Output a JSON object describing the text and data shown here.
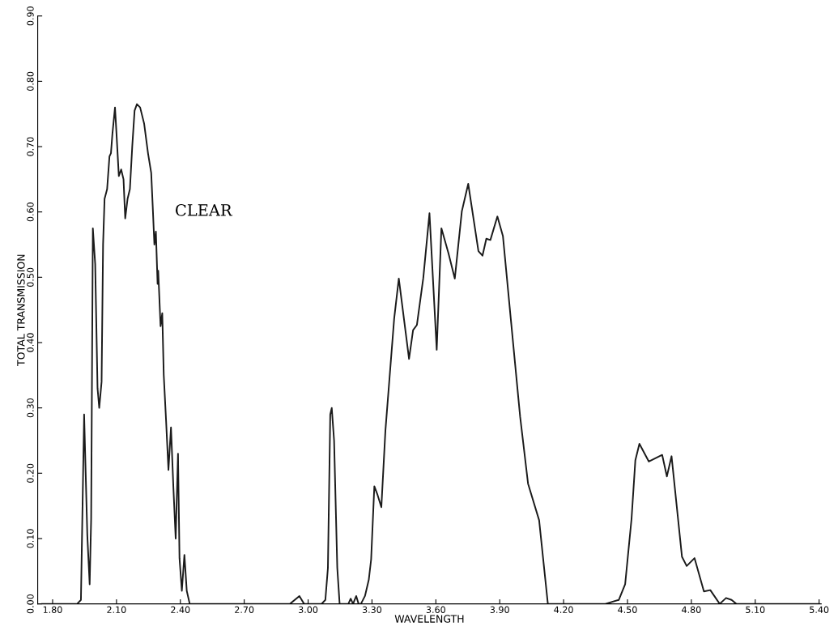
{
  "chart_data": {
    "type": "line",
    "xlabel": "WAVELENGTH",
    "ylabel": "TOTAL TRANSMISSION",
    "annotations": [
      "CLEAR"
    ],
    "xlim": [
      1.73,
      5.41
    ],
    "ylim": [
      0,
      0.9
    ],
    "xticks": [
      {
        "value": 1.8,
        "label": "1.80"
      },
      {
        "value": 2.1,
        "label": "2.10"
      },
      {
        "value": 2.4,
        "label": "2.40"
      },
      {
        "value": 2.7,
        "label": "2.70"
      },
      {
        "value": 3.0,
        "label": "3.00"
      },
      {
        "value": 3.3,
        "label": "3.30"
      },
      {
        "value": 3.6,
        "label": "3.60"
      },
      {
        "value": 3.9,
        "label": "3.90"
      },
      {
        "value": 4.2,
        "label": "4.20"
      },
      {
        "value": 4.5,
        "label": "4.50"
      },
      {
        "value": 4.8,
        "label": "4.80"
      },
      {
        "value": 5.1,
        "label": "5.10"
      },
      {
        "value": 5.4,
        "label": "5.40"
      }
    ],
    "yticks": [
      {
        "value": 0,
        "label": "0.00"
      },
      {
        "value": 0.1,
        "label": "0.10"
      },
      {
        "value": 0.2,
        "label": "0.20"
      },
      {
        "value": 0.3,
        "label": "0.30"
      },
      {
        "value": 0.4,
        "label": "0.40"
      },
      {
        "value": 0.5,
        "label": "0.50"
      },
      {
        "value": 0.6,
        "label": "0.60"
      },
      {
        "value": 0.7,
        "label": "0.70"
      },
      {
        "value": 0.8,
        "label": "0.80"
      },
      {
        "value": 0.9,
        "label": "0.90"
      }
    ],
    "grid": false,
    "legend": false,
    "marker": "none",
    "line_style": "solid",
    "series": [
      {
        "color": "#1a1a1a",
        "x": [
          1.75,
          1.915,
          1.933,
          1.948,
          1.963,
          1.974,
          1.981,
          1.989,
          2.0,
          2.011,
          2.019,
          2.03,
          2.037,
          2.044,
          2.056,
          2.067,
          2.074,
          2.081,
          2.093,
          2.1,
          2.111,
          2.122,
          2.133,
          2.141,
          2.152,
          2.163,
          2.174,
          2.185,
          2.196,
          2.211,
          2.23,
          2.248,
          2.263,
          2.27,
          2.278,
          2.285,
          2.293,
          2.296,
          2.307,
          2.315,
          2.322,
          2.333,
          2.344,
          2.356,
          2.367,
          2.378,
          2.389,
          2.396,
          2.407,
          2.419,
          2.43,
          2.444,
          2.915,
          2.959,
          2.981,
          3.063,
          3.081,
          3.093,
          3.104,
          3.111,
          3.122,
          3.137,
          3.148,
          3.189,
          3.2,
          3.211,
          3.226,
          3.237,
          3.248,
          3.267,
          3.285,
          3.296,
          3.311,
          3.326,
          3.344,
          3.363,
          3.404,
          3.426,
          3.474,
          3.493,
          3.511,
          3.541,
          3.57,
          3.604,
          3.626,
          3.659,
          3.689,
          3.722,
          3.752,
          3.8,
          3.819,
          3.837,
          3.856,
          3.889,
          3.915,
          3.952,
          3.996,
          4.033,
          4.085,
          4.126,
          4.396,
          4.459,
          4.489,
          4.519,
          4.537,
          4.556,
          4.6,
          4.663,
          4.685,
          4.707,
          4.756,
          4.778,
          4.815,
          4.859,
          4.889,
          4.933,
          4.963,
          4.989,
          5.011,
          5.4
        ],
        "values": [
          0,
          0,
          0.006,
          0.29,
          0.105,
          0.03,
          0.13,
          0.575,
          0.52,
          0.33,
          0.3,
          0.34,
          0.55,
          0.62,
          0.635,
          0.685,
          0.69,
          0.72,
          0.76,
          0.72,
          0.655,
          0.665,
          0.65,
          0.59,
          0.62,
          0.635,
          0.7,
          0.755,
          0.765,
          0.76,
          0.735,
          0.69,
          0.66,
          0.61,
          0.55,
          0.57,
          0.49,
          0.51,
          0.425,
          0.445,
          0.35,
          0.28,
          0.205,
          0.27,
          0.18,
          0.1,
          0.23,
          0.07,
          0.02,
          0.075,
          0.02,
          0,
          0,
          0.012,
          0,
          0,
          0.006,
          0.055,
          0.29,
          0.3,
          0.25,
          0.055,
          0,
          0,
          0.008,
          0,
          0.012,
          0,
          0,
          0.012,
          0.037,
          0.068,
          0.18,
          0.167,
          0.148,
          0.265,
          0.436,
          0.498,
          0.375,
          0.419,
          0.427,
          0.499,
          0.598,
          0.389,
          0.575,
          0.537,
          0.498,
          0.601,
          0.643,
          0.54,
          0.533,
          0.559,
          0.557,
          0.593,
          0.563,
          0.436,
          0.286,
          0.184,
          0.128,
          0,
          0,
          0.006,
          0.03,
          0.13,
          0.22,
          0.245,
          0.218,
          0.228,
          0.195,
          0.226,
          0.072,
          0.058,
          0.07,
          0.019,
          0.021,
          0,
          0.009,
          0.006,
          0,
          0
        ]
      }
    ]
  }
}
